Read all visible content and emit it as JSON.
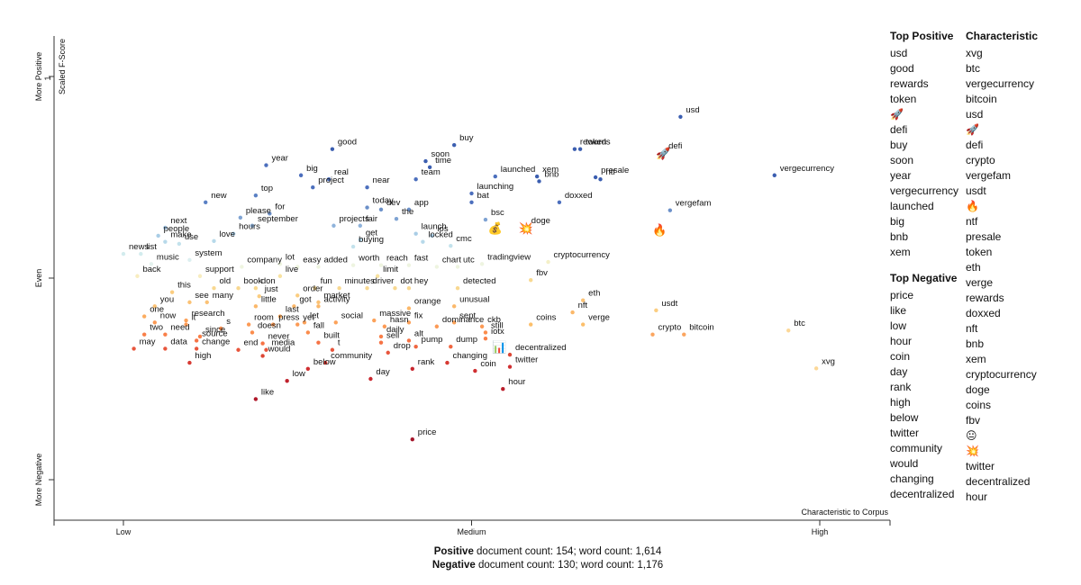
{
  "chart_data": {
    "type": "scatter",
    "xlabel": "Characteristic to Corpus",
    "ylabel": "Scaled F-Score",
    "x_ticks": [
      "Low",
      "Medium",
      "High"
    ],
    "y_ticks": [
      "More Positive",
      "Even",
      "More Negative"
    ],
    "y_tick_one": "1",
    "xlim": [
      0,
      1
    ],
    "ylim": [
      0,
      1
    ],
    "points": [
      {
        "term": "usd",
        "x": 0.8,
        "y": 0.9,
        "color": "#3b5eb0"
      },
      {
        "term": "defi",
        "x": 0.775,
        "y": 0.81,
        "color": "#3b5eb0",
        "emoji": "🚀"
      },
      {
        "term": "rewards",
        "x": 0.648,
        "y": 0.82,
        "color": "#3b5eb0"
      },
      {
        "term": "token",
        "x": 0.656,
        "y": 0.82,
        "color": "#3b5eb0"
      },
      {
        "term": "buy",
        "x": 0.475,
        "y": 0.83,
        "color": "#3b5eb0"
      },
      {
        "term": "good",
        "x": 0.3,
        "y": 0.82,
        "color": "#3b5eb0"
      },
      {
        "term": "soon",
        "x": 0.434,
        "y": 0.79,
        "color": "#3b5eb0"
      },
      {
        "term": "time",
        "x": 0.44,
        "y": 0.775,
        "color": "#3b5eb0"
      },
      {
        "term": "year",
        "x": 0.205,
        "y": 0.78,
        "color": "#4c6fbd"
      },
      {
        "term": "big",
        "x": 0.255,
        "y": 0.755,
        "color": "#4c6fbd"
      },
      {
        "term": "real",
        "x": 0.295,
        "y": 0.745,
        "color": "#4c6fbd"
      },
      {
        "term": "vergecurrency",
        "x": 0.935,
        "y": 0.755,
        "color": "#3b5eb0"
      },
      {
        "term": "launched",
        "x": 0.534,
        "y": 0.752,
        "color": "#4c6fbd"
      },
      {
        "term": "xem",
        "x": 0.594,
        "y": 0.752,
        "color": "#3b5eb0"
      },
      {
        "term": "presale",
        "x": 0.678,
        "y": 0.75,
        "color": "#3b5eb0"
      },
      {
        "term": "team",
        "x": 0.42,
        "y": 0.745,
        "color": "#4c6fbd"
      },
      {
        "term": "ntf",
        "x": 0.685,
        "y": 0.745,
        "color": "#3b5eb0"
      },
      {
        "term": "project",
        "x": 0.272,
        "y": 0.725,
        "color": "#4c6fbd"
      },
      {
        "term": "near",
        "x": 0.35,
        "y": 0.725,
        "color": "#4c6fbd"
      },
      {
        "term": "bnb",
        "x": 0.597,
        "y": 0.74,
        "color": "#3b5eb0"
      },
      {
        "term": "launching",
        "x": 0.5,
        "y": 0.71,
        "color": "#4c6fbd"
      },
      {
        "term": "new",
        "x": 0.118,
        "y": 0.688,
        "color": "#5a80c4"
      },
      {
        "term": "top",
        "x": 0.19,
        "y": 0.705,
        "color": "#5a80c4"
      },
      {
        "term": "bat",
        "x": 0.5,
        "y": 0.688,
        "color": "#4c6fbd"
      },
      {
        "term": "doxxed",
        "x": 0.626,
        "y": 0.688,
        "color": "#4c6fbd"
      },
      {
        "term": "for",
        "x": 0.21,
        "y": 0.66,
        "color": "#6b90c9"
      },
      {
        "term": "today",
        "x": 0.35,
        "y": 0.675,
        "color": "#6b90c9"
      },
      {
        "term": "dev",
        "x": 0.37,
        "y": 0.67,
        "color": "#6b90c9"
      },
      {
        "term": "app",
        "x": 0.41,
        "y": 0.67,
        "color": "#6b90c9"
      },
      {
        "term": "vergefam",
        "x": 0.785,
        "y": 0.668,
        "color": "#6b90c9"
      },
      {
        "term": "please",
        "x": 0.168,
        "y": 0.65,
        "color": "#7fa3d3"
      },
      {
        "term": "the",
        "x": 0.392,
        "y": 0.647,
        "color": "#7fa3d3"
      },
      {
        "term": "bsc",
        "x": 0.52,
        "y": 0.645,
        "color": "#7fa3d3"
      },
      {
        "term": "september",
        "x": 0.185,
        "y": 0.63,
        "color": "#8fb3db"
      },
      {
        "term": "projects",
        "x": 0.302,
        "y": 0.63,
        "color": "#8fb3db"
      },
      {
        "term": "fair",
        "x": 0.34,
        "y": 0.63,
        "color": "#8fb3db"
      },
      {
        "term": "next",
        "x": 0.06,
        "y": 0.625,
        "color": "#9cc0e0"
      },
      {
        "term": "doge",
        "x": 0.578,
        "y": 0.625,
        "color": "#9cc0e0",
        "emoji": "💥"
      },
      {
        "term": "💰",
        "x": 0.534,
        "y": 0.625,
        "color": "#9cc0e0",
        "emoji": "💰"
      },
      {
        "term": "🔥",
        "x": 0.77,
        "y": 0.62,
        "color": "#9cc0e0",
        "emoji": "🔥"
      },
      {
        "term": "hours",
        "x": 0.158,
        "y": 0.61,
        "color": "#a9cde6"
      },
      {
        "term": "people",
        "x": 0.05,
        "y": 0.605,
        "color": "#a9cde6"
      },
      {
        "term": "launch",
        "x": 0.42,
        "y": 0.61,
        "color": "#a9cde6"
      },
      {
        "term": "ios",
        "x": 0.443,
        "y": 0.605,
        "color": "#a9cde6"
      },
      {
        "term": "make",
        "x": 0.06,
        "y": 0.59,
        "color": "#b7d9ea"
      },
      {
        "term": "love",
        "x": 0.13,
        "y": 0.592,
        "color": "#b7d9ea"
      },
      {
        "term": "get",
        "x": 0.34,
        "y": 0.595,
        "color": "#b7d9ea"
      },
      {
        "term": "locked",
        "x": 0.43,
        "y": 0.59,
        "color": "#b7d9ea"
      },
      {
        "term": "use",
        "x": 0.08,
        "y": 0.585,
        "color": "#c3e2ec"
      },
      {
        "term": "buying",
        "x": 0.33,
        "y": 0.578,
        "color": "#c3e2ec"
      },
      {
        "term": "cmc",
        "x": 0.47,
        "y": 0.58,
        "color": "#c3e2ec"
      },
      {
        "term": "news",
        "x": 0.0,
        "y": 0.56,
        "color": "#d3ecee"
      },
      {
        "term": "list",
        "x": 0.025,
        "y": 0.56,
        "color": "#d3ecee"
      },
      {
        "term": "system",
        "x": 0.095,
        "y": 0.545,
        "color": "#dceff0"
      },
      {
        "term": "music",
        "x": 0.04,
        "y": 0.535,
        "color": "#e4f2ee"
      },
      {
        "term": "company",
        "x": 0.17,
        "y": 0.528,
        "color": "#eef4e0"
      },
      {
        "term": "lot",
        "x": 0.225,
        "y": 0.535,
        "color": "#eef4e0"
      },
      {
        "term": "easy",
        "x": 0.25,
        "y": 0.528,
        "color": "#eef4e0"
      },
      {
        "term": "added",
        "x": 0.28,
        "y": 0.528,
        "color": "#eef4e0"
      },
      {
        "term": "worth",
        "x": 0.33,
        "y": 0.532,
        "color": "#eef4e0"
      },
      {
        "term": "reach",
        "x": 0.37,
        "y": 0.532,
        "color": "#eef4e0"
      },
      {
        "term": "fast",
        "x": 0.41,
        "y": 0.532,
        "color": "#eef4e0"
      },
      {
        "term": "chart",
        "x": 0.45,
        "y": 0.528,
        "color": "#eef4e0"
      },
      {
        "term": "utc",
        "x": 0.48,
        "y": 0.528,
        "color": "#eef4e0"
      },
      {
        "term": "tradingview",
        "x": 0.515,
        "y": 0.535,
        "color": "#eef4e0"
      },
      {
        "term": "cryptocurrency",
        "x": 0.61,
        "y": 0.54,
        "color": "#f4f0c8"
      },
      {
        "term": "back",
        "x": 0.02,
        "y": 0.505,
        "color": "#f8edc0"
      },
      {
        "term": "support",
        "x": 0.11,
        "y": 0.505,
        "color": "#f8edc0"
      },
      {
        "term": "live",
        "x": 0.225,
        "y": 0.505,
        "color": "#f8e2a0"
      },
      {
        "term": "limit",
        "x": 0.365,
        "y": 0.505,
        "color": "#f8e2a0"
      },
      {
        "term": "fbv",
        "x": 0.585,
        "y": 0.495,
        "color": "#f8d890"
      },
      {
        "term": "old",
        "x": 0.13,
        "y": 0.475,
        "color": "#f8d890"
      },
      {
        "term": "book",
        "x": 0.165,
        "y": 0.475,
        "color": "#f8d890"
      },
      {
        "term": "don",
        "x": 0.19,
        "y": 0.475,
        "color": "#f8d890"
      },
      {
        "term": "fun",
        "x": 0.275,
        "y": 0.475,
        "color": "#f8d890"
      },
      {
        "term": "minutes",
        "x": 0.31,
        "y": 0.475,
        "color": "#f8d890"
      },
      {
        "term": "driver",
        "x": 0.35,
        "y": 0.475,
        "color": "#f8d890"
      },
      {
        "term": "dot",
        "x": 0.39,
        "y": 0.475,
        "color": "#f8d890"
      },
      {
        "term": "hey",
        "x": 0.41,
        "y": 0.475,
        "color": "#f8d890"
      },
      {
        "term": "detected",
        "x": 0.48,
        "y": 0.475,
        "color": "#f8d890"
      },
      {
        "term": "this",
        "x": 0.07,
        "y": 0.465,
        "color": "#fbcd80"
      },
      {
        "term": "just",
        "x": 0.195,
        "y": 0.455,
        "color": "#fbcd80"
      },
      {
        "term": "order",
        "x": 0.25,
        "y": 0.457,
        "color": "#fbcd80"
      },
      {
        "term": "eth",
        "x": 0.66,
        "y": 0.445,
        "color": "#fbc275"
      },
      {
        "term": "market",
        "x": 0.28,
        "y": 0.44,
        "color": "#fbc275"
      },
      {
        "term": "see",
        "x": 0.095,
        "y": 0.44,
        "color": "#fbc275"
      },
      {
        "term": "many",
        "x": 0.12,
        "y": 0.44,
        "color": "#fbc275"
      },
      {
        "term": "you",
        "x": 0.045,
        "y": 0.43,
        "color": "#fbc275"
      },
      {
        "term": "little",
        "x": 0.19,
        "y": 0.43,
        "color": "#fbb86a"
      },
      {
        "term": "got",
        "x": 0.245,
        "y": 0.43,
        "color": "#fbb86a"
      },
      {
        "term": "activity",
        "x": 0.28,
        "y": 0.43,
        "color": "#fbb86a"
      },
      {
        "term": "orange",
        "x": 0.41,
        "y": 0.425,
        "color": "#fbb86a"
      },
      {
        "term": "unusual",
        "x": 0.475,
        "y": 0.43,
        "color": "#fbb86a"
      },
      {
        "term": "usdt",
        "x": 0.765,
        "y": 0.42,
        "color": "#fbcd80"
      },
      {
        "term": "nft",
        "x": 0.645,
        "y": 0.415,
        "color": "#fbb86a"
      },
      {
        "term": "one",
        "x": 0.03,
        "y": 0.405,
        "color": "#fcac5f"
      },
      {
        "term": "last",
        "x": 0.225,
        "y": 0.405,
        "color": "#fcac5f"
      },
      {
        "term": "research",
        "x": 0.09,
        "y": 0.395,
        "color": "#fca25a"
      },
      {
        "term": "massive",
        "x": 0.36,
        "y": 0.395,
        "color": "#fca25a"
      },
      {
        "term": "let",
        "x": 0.26,
        "y": 0.39,
        "color": "#fca25a"
      },
      {
        "term": "social",
        "x": 0.305,
        "y": 0.39,
        "color": "#fca25a"
      },
      {
        "term": "fix",
        "x": 0.41,
        "y": 0.39,
        "color": "#fca25a"
      },
      {
        "term": "sept",
        "x": 0.475,
        "y": 0.39,
        "color": "#fca25a"
      },
      {
        "term": "now",
        "x": 0.045,
        "y": 0.39,
        "color": "#fc9a55"
      },
      {
        "term": "it",
        "x": 0.09,
        "y": 0.385,
        "color": "#fc9a55"
      },
      {
        "term": "room",
        "x": 0.18,
        "y": 0.385,
        "color": "#fc9a55"
      },
      {
        "term": "press",
        "x": 0.215,
        "y": 0.385,
        "color": "#fc9a55"
      },
      {
        "term": "yet",
        "x": 0.25,
        "y": 0.385,
        "color": "#fc9a55"
      },
      {
        "term": "hasn",
        "x": 0.375,
        "y": 0.38,
        "color": "#fc9a55"
      },
      {
        "term": "dominance",
        "x": 0.45,
        "y": 0.38,
        "color": "#fc9a55"
      },
      {
        "term": "ckb",
        "x": 0.515,
        "y": 0.38,
        "color": "#fc9a55"
      },
      {
        "term": "coins",
        "x": 0.585,
        "y": 0.385,
        "color": "#fcbf6a"
      },
      {
        "term": "verge",
        "x": 0.66,
        "y": 0.385,
        "color": "#fcbf6a"
      },
      {
        "term": "s",
        "x": 0.14,
        "y": 0.375,
        "color": "#fb8c4c"
      },
      {
        "term": "doesn",
        "x": 0.185,
        "y": 0.365,
        "color": "#fb8c4c"
      },
      {
        "term": "fall",
        "x": 0.265,
        "y": 0.365,
        "color": "#fb8c4c"
      },
      {
        "term": "still",
        "x": 0.52,
        "y": 0.365,
        "color": "#fb8c4c"
      },
      {
        "term": "two",
        "x": 0.03,
        "y": 0.36,
        "color": "#f97f48"
      },
      {
        "term": "need",
        "x": 0.06,
        "y": 0.36,
        "color": "#f97f48"
      },
      {
        "term": "since",
        "x": 0.11,
        "y": 0.355,
        "color": "#f97f48"
      },
      {
        "term": "daily",
        "x": 0.37,
        "y": 0.355,
        "color": "#f97f48"
      },
      {
        "term": "iotx",
        "x": 0.52,
        "y": 0.35,
        "color": "#f97f48"
      },
      {
        "term": "btc",
        "x": 0.955,
        "y": 0.37,
        "color": "#fcd898"
      },
      {
        "term": "source",
        "x": 0.105,
        "y": 0.345,
        "color": "#f67345"
      },
      {
        "term": "never",
        "x": 0.2,
        "y": 0.338,
        "color": "#f67345"
      },
      {
        "term": "built",
        "x": 0.28,
        "y": 0.34,
        "color": "#f67345"
      },
      {
        "term": "sell",
        "x": 0.37,
        "y": 0.34,
        "color": "#f67345"
      },
      {
        "term": "alt",
        "x": 0.41,
        "y": 0.345,
        "color": "#f67345"
      },
      {
        "term": "pump",
        "x": 0.42,
        "y": 0.33,
        "color": "#f06640"
      },
      {
        "term": "dump",
        "x": 0.47,
        "y": 0.33,
        "color": "#f06640"
      },
      {
        "term": "📊",
        "x": 0.54,
        "y": 0.33,
        "color": "#f06640",
        "emoji": "📊"
      },
      {
        "term": "crypto",
        "x": 0.76,
        "y": 0.36,
        "color": "#fba55f"
      },
      {
        "term": "bitcoin",
        "x": 0.805,
        "y": 0.36,
        "color": "#fba55f"
      },
      {
        "term": "may",
        "x": 0.015,
        "y": 0.325,
        "color": "#e8553c"
      },
      {
        "term": "data",
        "x": 0.06,
        "y": 0.325,
        "color": "#e8553c"
      },
      {
        "term": "change",
        "x": 0.105,
        "y": 0.325,
        "color": "#e8553c"
      },
      {
        "term": "end",
        "x": 0.165,
        "y": 0.322,
        "color": "#e8553c"
      },
      {
        "term": "media",
        "x": 0.205,
        "y": 0.322,
        "color": "#e8553c"
      },
      {
        "term": "t",
        "x": 0.3,
        "y": 0.322,
        "color": "#e8553c"
      },
      {
        "term": "drop",
        "x": 0.38,
        "y": 0.315,
        "color": "#e8553c"
      },
      {
        "term": "decentralized",
        "x": 0.555,
        "y": 0.31,
        "color": "#dd4735"
      },
      {
        "term": "would",
        "x": 0.2,
        "y": 0.307,
        "color": "#dd4735"
      },
      {
        "term": "high",
        "x": 0.095,
        "y": 0.29,
        "color": "#d73a33"
      },
      {
        "term": "community",
        "x": 0.29,
        "y": 0.29,
        "color": "#d73a33"
      },
      {
        "term": "changing",
        "x": 0.465,
        "y": 0.29,
        "color": "#d73a33"
      },
      {
        "term": "coin",
        "x": 0.505,
        "y": 0.27,
        "color": "#d02f31"
      },
      {
        "term": "twitter",
        "x": 0.555,
        "y": 0.28,
        "color": "#d02f31"
      },
      {
        "term": "below",
        "x": 0.265,
        "y": 0.275,
        "color": "#d02f31"
      },
      {
        "term": "rank",
        "x": 0.415,
        "y": 0.275,
        "color": "#c9272f"
      },
      {
        "term": "day",
        "x": 0.355,
        "y": 0.25,
        "color": "#c9272f"
      },
      {
        "term": "low",
        "x": 0.235,
        "y": 0.245,
        "color": "#c0222d"
      },
      {
        "term": "xvg",
        "x": 0.995,
        "y": 0.276,
        "color": "#fcd898"
      },
      {
        "term": "hour",
        "x": 0.545,
        "y": 0.225,
        "color": "#bb1e2b"
      },
      {
        "term": "like",
        "x": 0.19,
        "y": 0.2,
        "color": "#b0182a"
      },
      {
        "term": "price",
        "x": 0.415,
        "y": 0.1,
        "color": "#a5152a"
      }
    ]
  },
  "sidebar": {
    "top_positive_title": "Top Positive",
    "top_positive": [
      "usd",
      "good",
      "rewards",
      "token",
      "🚀",
      "defi",
      "buy",
      "soon",
      "year",
      "vergecurrency",
      "launched",
      "big",
      "bnb",
      "xem"
    ],
    "top_negative_title": "Top Negative",
    "top_negative": [
      "price",
      "like",
      "low",
      "hour",
      "coin",
      "day",
      "rank",
      "high",
      "below",
      "twitter",
      "community",
      "would",
      "changing",
      "decentralized"
    ],
    "characteristic_title": "Characteristic",
    "characteristic": [
      "xvg",
      "btc",
      "vergecurrency",
      "bitcoin",
      "usd",
      "🚀",
      "defi",
      "crypto",
      "vergefam",
      "usdt",
      "🔥",
      "ntf",
      "presale",
      "token",
      "eth",
      "verge",
      "rewards",
      "doxxed",
      "nft",
      "bnb",
      "xem",
      "cryptocurrency",
      "doge",
      "coins",
      "fbv",
      "😐",
      "💥",
      "twitter",
      "decentralized",
      "hour"
    ]
  },
  "footer": {
    "positive_label": "Positive",
    "positive_text": " document count: 154; word count: 1,614",
    "negative_label": "Negative",
    "negative_text": " document count: 130; word count: 1,176"
  }
}
